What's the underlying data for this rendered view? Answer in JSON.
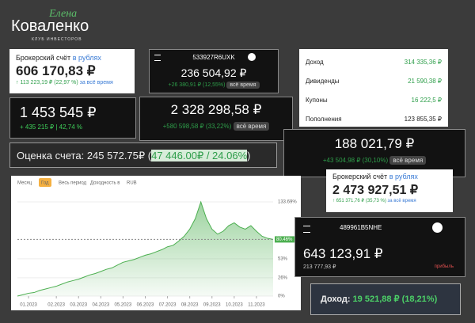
{
  "logo": {
    "script": "Елена",
    "name": "Коваленко",
    "sub": "КЛУБ ИНВЕСТОРОВ"
  },
  "account_rub": {
    "label": "Брокерский счёт",
    "link": "в рублях",
    "value": "606 170,83 ₽",
    "change": "↑ 113 223,19 ₽ (22,97 %)",
    "period": "за всё время"
  },
  "account_a": {
    "id": "533927R6UXK",
    "value": "236 504,92 ₽",
    "change": "+26 380,91 ₽ (12,55%)",
    "period": "всё время"
  },
  "income": {
    "rows": [
      [
        "Доход",
        "314 335,36 ₽"
      ],
      [
        "Дивиденды",
        "21 590,38 ₽"
      ],
      [
        "Купоны",
        "16 222,5 ₽"
      ],
      [
        "Пополнения",
        "123 855,35 ₽"
      ]
    ]
  },
  "total_a": {
    "value": "1 453 545 ₽",
    "change": "+ 435 215 ₽ | 42,74 %"
  },
  "total_b": {
    "value": "2 328 298,58 ₽",
    "change": "+580 598,58 ₽ (33,22%)",
    "period": "всё время"
  },
  "total_c": {
    "value": "188 021,79 ₽",
    "change": "+43 504,98 ₽ (30,10%)",
    "period": "всё время"
  },
  "estimate": {
    "label": "Оценка счета: 245 572.75₽ (",
    "gain": "47 446.00₽ / 24.06%",
    "close": ")"
  },
  "account_rub2": {
    "label": "Брокерский счёт",
    "link": "в рублях",
    "value": "2 473 927,51 ₽",
    "change": "↑ 651 371,76 ₽ (35,73 %)",
    "period": "за всё время"
  },
  "account_b": {
    "id": "489961B5NHE",
    "value": "643 123,91 ₽",
    "profit": "213 777,93 ₽",
    "profit_label": "прибыль"
  },
  "dohod": {
    "label": "Доход:",
    "value": "19 521,88 ₽ (18,21%)"
  },
  "chart_toolbar": [
    "Месяц",
    "Год",
    "Весь период",
    "Доходность в",
    "RUB"
  ],
  "chart_data": {
    "type": "area",
    "color": "#4caf50",
    "values": [
      0,
      2,
      4,
      5,
      8,
      10,
      12,
      14,
      17,
      20,
      22,
      24,
      27,
      30,
      32,
      35,
      38,
      40,
      44,
      48,
      50,
      52,
      55,
      58,
      60,
      63,
      66,
      70,
      72,
      78,
      85,
      95,
      110,
      133.69,
      110,
      95,
      88,
      92,
      100,
      104,
      98,
      95,
      100,
      92,
      85,
      82,
      80.46
    ],
    "xlim": [
      0,
      46
    ],
    "xticks": [
      {
        "value": 2,
        "label": "01.2023"
      },
      {
        "value": 7,
        "label": "02.2023"
      },
      {
        "value": 11,
        "label": "03.2023"
      },
      {
        "value": 15,
        "label": "04.2023"
      },
      {
        "value": 19,
        "label": "05.2023"
      },
      {
        "value": 23,
        "label": "06.2023"
      },
      {
        "value": 27,
        "label": "07.2023"
      },
      {
        "value": 31,
        "label": "08.2023"
      },
      {
        "value": 35,
        "label": "09.2023"
      },
      {
        "value": 39,
        "label": "10.2023"
      },
      {
        "value": 43,
        "label": "11.2023"
      }
    ],
    "ylim": [
      0,
      136
    ],
    "yticks": [
      {
        "value": 0,
        "label": "0%"
      },
      {
        "value": 26,
        "label": "26%"
      },
      {
        "value": 53,
        "label": "53%"
      },
      {
        "value": 133.69,
        "label": "133.69%"
      }
    ],
    "current": {
      "value": 80.46,
      "label": "80.46%"
    }
  }
}
